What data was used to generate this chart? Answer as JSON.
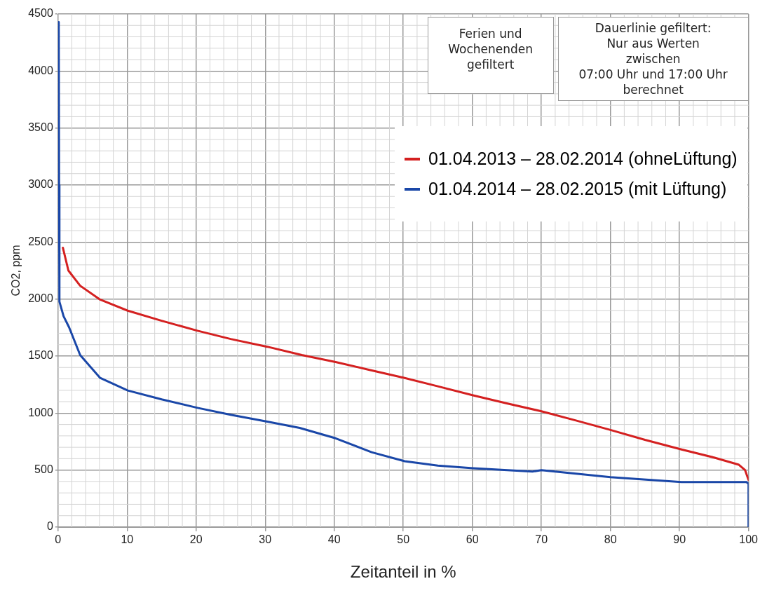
{
  "chart_data": {
    "type": "line",
    "xlabel": "Zeitanteil in %",
    "ylabel": "CO2, ppm",
    "xlim": [
      0,
      100
    ],
    "xticks": [
      0,
      10,
      20,
      30,
      40,
      50,
      60,
      70,
      80,
      90,
      100
    ],
    "ylim": [
      0,
      4500
    ],
    "yticks": [
      0,
      500,
      1000,
      1500,
      2000,
      2500,
      3000,
      3500,
      4000,
      4500
    ],
    "grid": true,
    "legend": "right",
    "marker": "none",
    "line_style": "solid",
    "annotations": [
      "Ferien und\nWochenenden\ngefiltert",
      "Dauerlinie gefiltert:\nNur aus Werten\nzwischen\n07:00 Uhr und 17:00 Uhr\nberechnet"
    ],
    "series": [
      {
        "name": "01.04.2013 – 28.02.2014 (ohneLüftung)",
        "color": "#d42020",
        "x": [
          0.7,
          1.5,
          3.2,
          6.1,
          10.1,
          15,
          20.2,
          25,
          30.3,
          35.3,
          40.2,
          45,
          50.2,
          55,
          60.1,
          65,
          70,
          75,
          80,
          85,
          90.3,
          95,
          98.6,
          99.5,
          100
        ],
        "values": [
          2450,
          2250,
          2117,
          1995,
          1898,
          1810,
          1722,
          1650,
          1582,
          1509,
          1448,
          1380,
          1308,
          1235,
          1156,
          1085,
          1016,
          935,
          852,
          765,
          681,
          610,
          547,
          500,
          414
        ]
      },
      {
        "name": "01.04.2014 – 28.02.2015 (mit Lüftung)",
        "color": "#1a47a8",
        "x": [
          0.1,
          0.15,
          0.2,
          0.8,
          1.6,
          3.2,
          6.1,
          10.1,
          15,
          20.2,
          25,
          30.3,
          35,
          40.2,
          45.4,
          50.2,
          55,
          60.1,
          68.7,
          70,
          80,
          90.3,
          99.7,
          100,
          100
        ],
        "values": [
          4430,
          3000,
          1977,
          1850,
          1752,
          1509,
          1308,
          1198,
          1120,
          1046,
          985,
          925,
          870,
          779,
          657,
          578,
          540,
          517,
          487,
          499,
          438,
          395,
          395,
          380,
          0
        ]
      }
    ]
  }
}
